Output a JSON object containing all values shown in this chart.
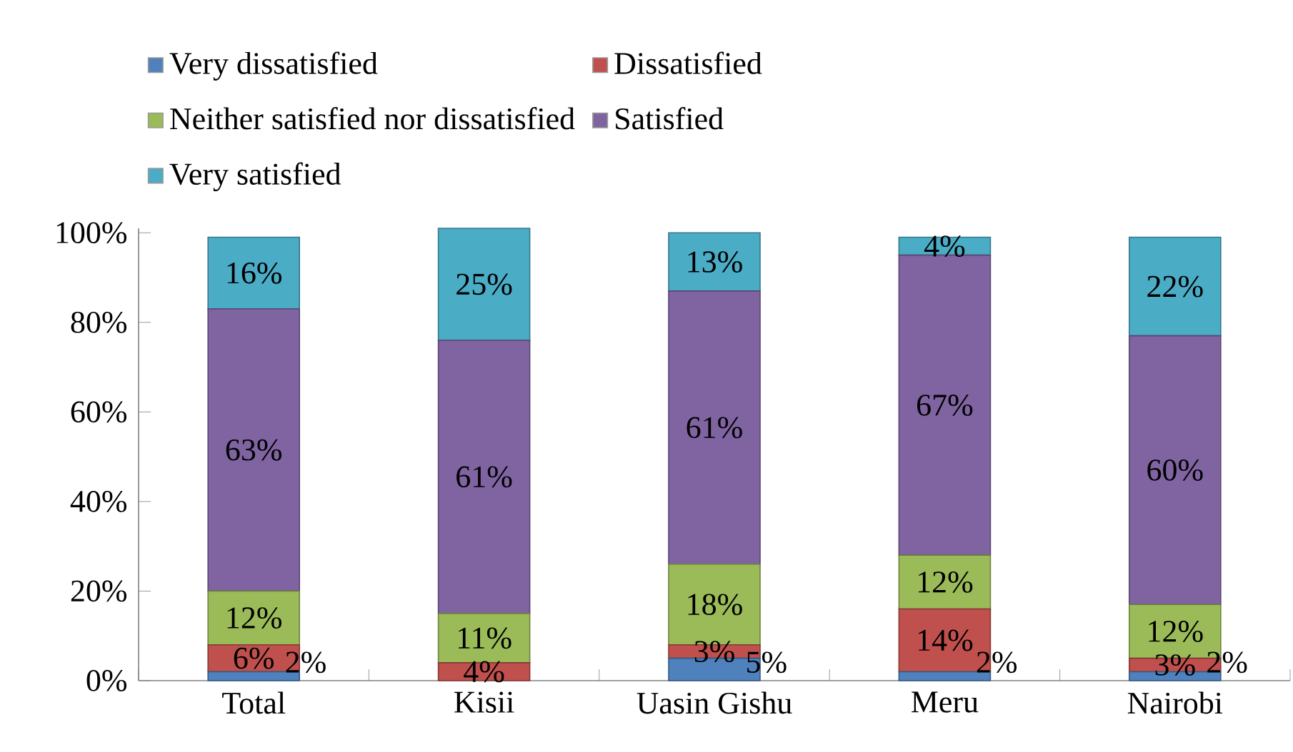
{
  "chart_data": {
    "type": "bar",
    "stacked": true,
    "categories": [
      "Total",
      "Kisii",
      "Uasin Gishu",
      "Meru",
      "Nairobi"
    ],
    "series": [
      {
        "name": "Very dissatisfied",
        "color": "#4f81bd",
        "values": [
          2,
          0,
          5,
          2,
          2
        ],
        "value_labels": [
          "2%",
          null,
          "5%",
          "2%",
          "2%"
        ]
      },
      {
        "name": "Dissatisfied",
        "color": "#c0504d",
        "values": [
          6,
          4,
          3,
          14,
          3
        ],
        "value_labels": [
          "6%",
          "4%",
          "3%",
          "14%",
          "3%"
        ]
      },
      {
        "name": "Neither satisfied nor dissatisfied",
        "color": "#9bbb59",
        "values": [
          12,
          11,
          18,
          12,
          12
        ],
        "value_labels": [
          "12%",
          "11%",
          "18%",
          "12%",
          "12%"
        ]
      },
      {
        "name": "Satisfied",
        "color": "#8064a2",
        "values": [
          63,
          61,
          61,
          67,
          60
        ],
        "value_labels": [
          "63%",
          "61%",
          "61%",
          "67%",
          "60%"
        ]
      },
      {
        "name": "Very satisfied",
        "color": "#4bacc6",
        "values": [
          16,
          25,
          13,
          4,
          22
        ],
        "value_labels": [
          "16%",
          "25%",
          "13%",
          "4%",
          "22%"
        ]
      }
    ],
    "ylim": [
      0,
      101
    ],
    "yticks": [
      {
        "value": 0,
        "label": "0%"
      },
      {
        "value": 20,
        "label": "20%"
      },
      {
        "value": 40,
        "label": "40%"
      },
      {
        "value": 60,
        "label": "60%"
      },
      {
        "value": 80,
        "label": "80%"
      },
      {
        "value": 100,
        "label": "100%"
      }
    ],
    "grid": false,
    "legend": "top"
  }
}
